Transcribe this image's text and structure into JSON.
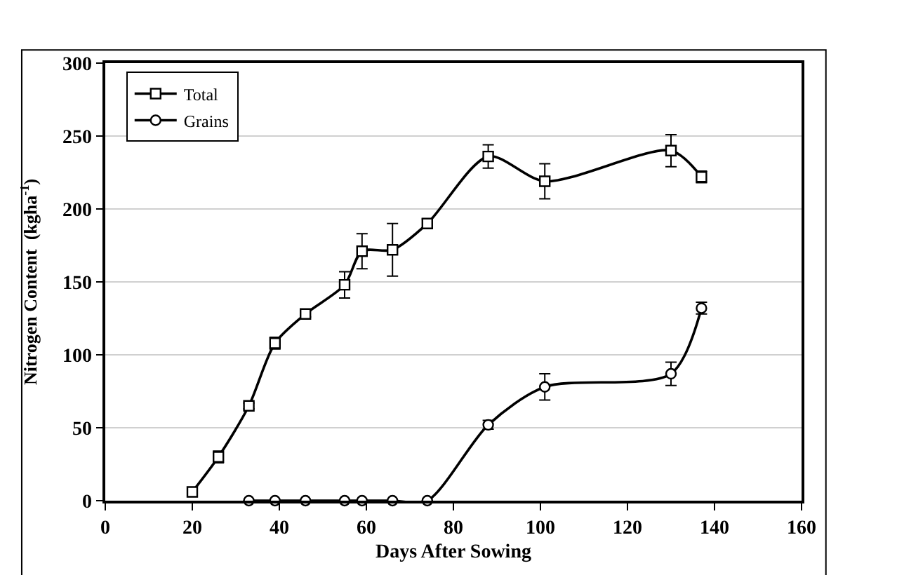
{
  "chart_data": {
    "type": "line",
    "xlabel": "Days After Sowing",
    "ylabel": "Nitrogen Content  (kgha$^{-1}$)",
    "xlim": [
      0,
      160
    ],
    "xticks": [
      0,
      20,
      40,
      60,
      80,
      100,
      120,
      140,
      160
    ],
    "ylim": [
      0,
      300
    ],
    "yticks": [
      0,
      50,
      100,
      150,
      200,
      250,
      300
    ],
    "grid": "y",
    "legend": "top left",
    "line_style": "solid",
    "series": [
      {
        "name": "Total",
        "color": "#000000",
        "marker": "square",
        "x": [
          20,
          26,
          33,
          39,
          46,
          55,
          59,
          66,
          74,
          88,
          101,
          130,
          137
        ],
        "values": [
          6,
          30,
          65,
          108,
          128,
          148,
          171,
          172,
          190,
          236,
          219,
          240,
          222
        ],
        "errors": [
          2,
          4,
          2,
          4,
          2,
          9,
          12,
          18,
          3,
          8,
          12,
          11,
          4
        ]
      },
      {
        "name": "Grains",
        "color": "#000000",
        "marker": "circle",
        "x": [
          33,
          39,
          46,
          55,
          59,
          66,
          74,
          88,
          101,
          130,
          137
        ],
        "values": [
          0,
          0,
          0,
          0,
          0,
          0,
          0,
          52,
          78,
          87,
          132
        ],
        "errors": [
          null,
          null,
          null,
          null,
          null,
          null,
          null,
          3,
          9,
          8,
          4
        ]
      }
    ]
  }
}
